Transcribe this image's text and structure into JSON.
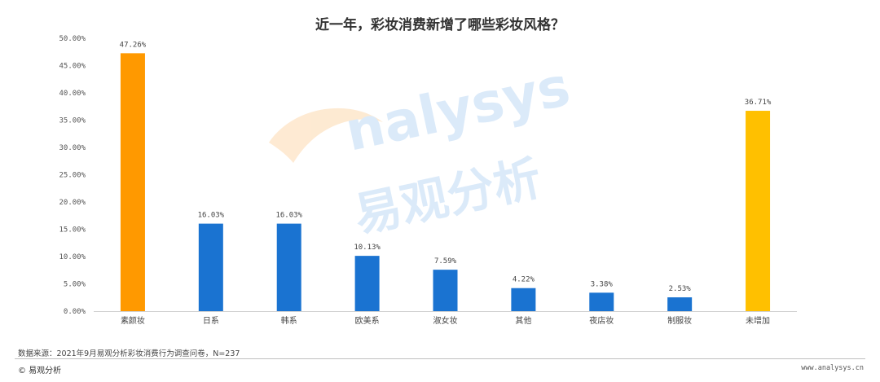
{
  "chart_data": {
    "type": "bar",
    "title": "近一年，彩妆消费新增了哪些彩妆风格？",
    "categories": [
      "素颜妆",
      "日系",
      "韩系",
      "欧美系",
      "淑女妆",
      "其他",
      "夜店妆",
      "制服妆",
      "未增加"
    ],
    "values": [
      47.26,
      16.03,
      16.03,
      10.13,
      7.59,
      4.22,
      3.38,
      2.53,
      36.71
    ],
    "data_labels": [
      "47.26%",
      "16.03%",
      "16.03%",
      "10.13%",
      "7.59%",
      "4.22%",
      "3.38%",
      "2.53%",
      "36.71%"
    ],
    "bar_colors": [
      "#ff9900",
      "#1a73d1",
      "#1a73d1",
      "#1a73d1",
      "#1a73d1",
      "#1a73d1",
      "#1a73d1",
      "#1a73d1",
      "#ffc000"
    ],
    "ylim": [
      0,
      50
    ],
    "yticks": [
      "0.00%",
      "5.00%",
      "10.00%",
      "15.00%",
      "20.00%",
      "25.00%",
      "30.00%",
      "35.00%",
      "40.00%",
      "45.00%",
      "50.00%"
    ],
    "xlabel": "",
    "ylabel": "",
    "grid": false
  },
  "watermark": {
    "latin": "nalysys",
    "chinese": "易观分析"
  },
  "footer": {
    "source": "数据来源：2021年9月易观分析彩妆消费行为调查问卷，N=237",
    "brand": "© 易观分析",
    "website": "www.analysys.cn"
  }
}
